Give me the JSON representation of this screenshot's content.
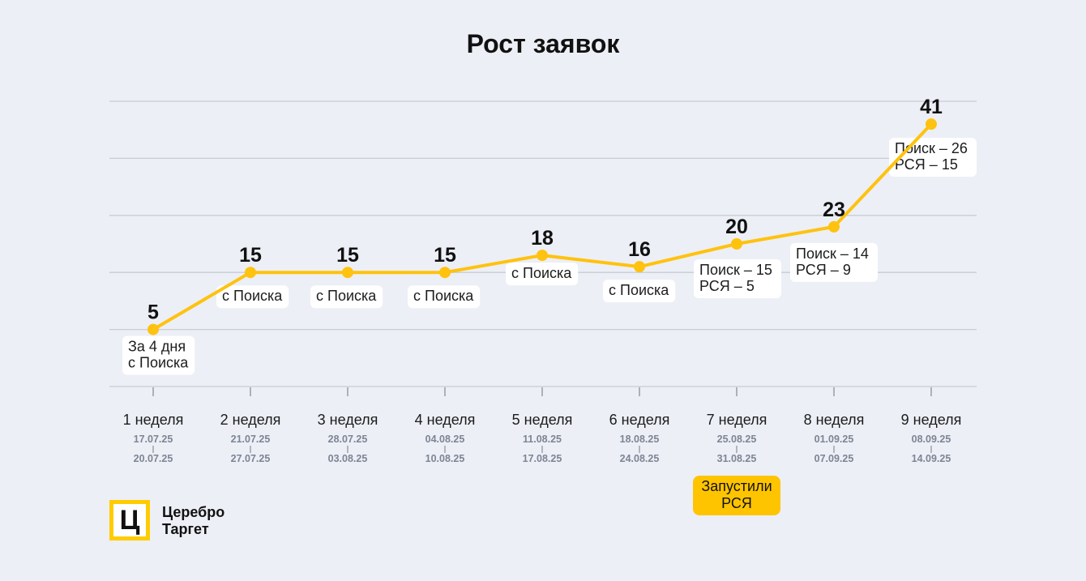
{
  "chart_data": {
    "type": "line",
    "title": "Рост заявок",
    "categories": [
      "1 неделя",
      "2 неделя",
      "3 неделя",
      "4 неделя",
      "5 неделя",
      "6 неделя",
      "7 неделя",
      "8 неделя",
      "9 неделя"
    ],
    "date_ranges": [
      [
        "17.07.25",
        "20.07.25"
      ],
      [
        "21.07.25",
        "27.07.25"
      ],
      [
        "28.07.25",
        "03.08.25"
      ],
      [
        "04.08.25",
        "10.08.25"
      ],
      [
        "11.08.25",
        "17.08.25"
      ],
      [
        "18.08.25",
        "24.08.25"
      ],
      [
        "25.08.25",
        "31.08.25"
      ],
      [
        "01.09.25",
        "07.09.25"
      ],
      [
        "08.09.25",
        "14.09.25"
      ]
    ],
    "series": [
      {
        "values": [
          5,
          15,
          15,
          15,
          18,
          16,
          20,
          23,
          41
        ]
      }
    ],
    "annotations": [
      [
        "За 4 дня",
        "с Поиска"
      ],
      [
        "с Поиска"
      ],
      [
        "с Поиска"
      ],
      [
        "с Поиска"
      ],
      [
        "с Поиска"
      ],
      [
        "с Поиска"
      ],
      [
        "Поиск – 15",
        "РСЯ – 5"
      ],
      [
        "Поиск – 14",
        "РСЯ – 9"
      ],
      [
        "Поиск – 26",
        "РСЯ – 15"
      ]
    ],
    "ylim": [
      -5,
      45
    ],
    "grid": true,
    "line_color": "#ffc20e",
    "launch_note": {
      "week": "7 неделя",
      "lines": [
        "Запустили",
        "РСЯ"
      ]
    }
  },
  "brand": {
    "logo_letter": "Ц",
    "name_lines": [
      "Церебро",
      "Таргет"
    ],
    "accent": "#ffcc00"
  }
}
